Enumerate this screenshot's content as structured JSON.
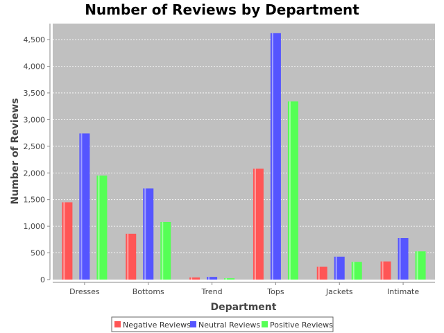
{
  "chart_data": {
    "type": "bar",
    "title": "Number of Reviews by Department",
    "xlabel": "Department",
    "ylabel": "Number of Reviews",
    "categories": [
      "Dresses",
      "Bottoms",
      "Trend",
      "Tops",
      "Jackets",
      "Intimate"
    ],
    "series": [
      {
        "name": "Negative Reviews",
        "color": "#ff5555",
        "values": [
          1450,
          860,
          40,
          2080,
          240,
          340
        ]
      },
      {
        "name": "Neutral Reviews",
        "color": "#5555ff",
        "values": [
          2740,
          1710,
          50,
          4620,
          430,
          780
        ]
      },
      {
        "name": "Positive Reviews",
        "color": "#55ff55",
        "values": [
          1950,
          1080,
          25,
          3340,
          330,
          530
        ]
      }
    ],
    "ylim": [
      0,
      4800
    ],
    "yticks": [
      0,
      500,
      1000,
      1500,
      2000,
      2500,
      3000,
      3500,
      4000,
      4500
    ],
    "ytick_labels": [
      "0",
      "500",
      "1,000",
      "1,500",
      "2,000",
      "2,500",
      "3,000",
      "3,500",
      "4,000",
      "4,500"
    ],
    "grid": true,
    "legend_position": "bottom",
    "plot_background": "#c0c0c0"
  }
}
